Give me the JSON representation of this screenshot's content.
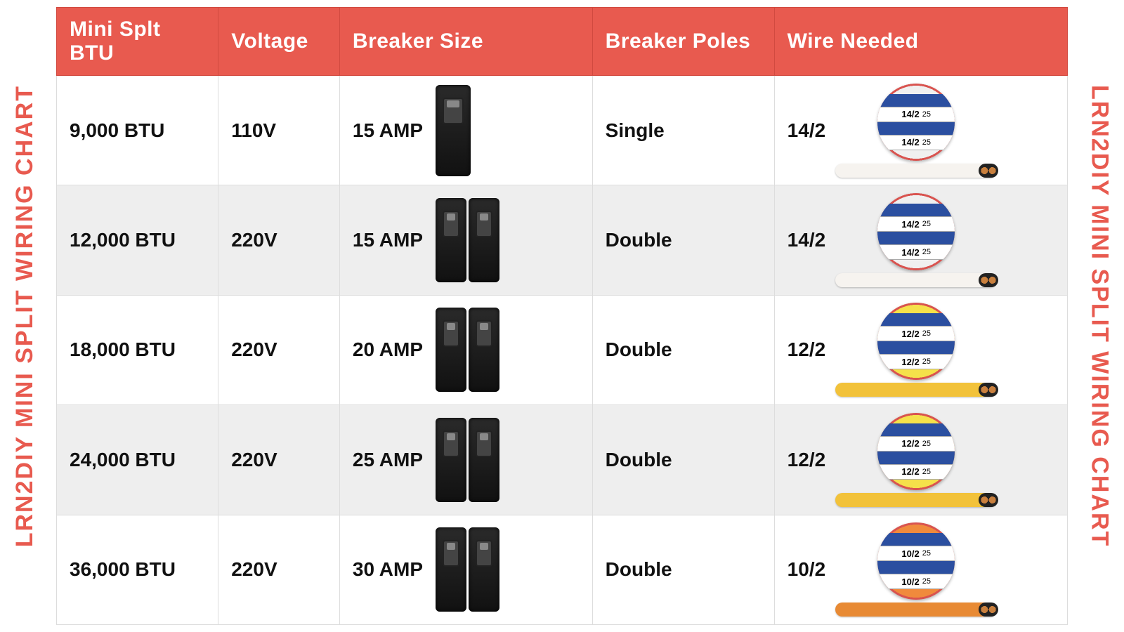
{
  "side_label": "LRN2DIY MINI SPLIT WIRING CHART",
  "colors": {
    "header_bg": "#e85a4f",
    "row_alt": "#eeeeee",
    "border": "#dddddd",
    "side_text": "#e85a4f"
  },
  "columns": [
    {
      "key": "btu",
      "label": "Mini Splt BTU"
    },
    {
      "key": "voltage",
      "label": "Voltage"
    },
    {
      "key": "breaker",
      "label": "Breaker Size"
    },
    {
      "key": "poles",
      "label": "Breaker Poles"
    },
    {
      "key": "wire",
      "label": "Wire Needed"
    }
  ],
  "rows": [
    {
      "btu": "9,000 BTU",
      "voltage": "110V",
      "breaker": "15 AMP",
      "poles": "Single",
      "pole_count": 1,
      "wire": "14/2",
      "wire_label": "14/2",
      "wire_sublabel": "25",
      "spool_bg": "#f0f0f0",
      "spool_ring": "#d9534f",
      "cable_color": "#f6f3ef"
    },
    {
      "btu": "12,000 BTU",
      "voltage": "220V",
      "breaker": "15 AMP",
      "poles": "Double",
      "pole_count": 2,
      "wire": "14/2",
      "wire_label": "14/2",
      "wire_sublabel": "25",
      "spool_bg": "#f0f0f0",
      "spool_ring": "#d9534f",
      "cable_color": "#f6f3ef"
    },
    {
      "btu": "18,000 BTU",
      "voltage": "220V",
      "breaker": "20 AMP",
      "poles": "Double",
      "pole_count": 2,
      "wire": "12/2",
      "wire_label": "12/2",
      "wire_sublabel": "25",
      "spool_bg": "#f5e14a",
      "spool_ring": "#d9534f",
      "cable_color": "#f2c23a"
    },
    {
      "btu": "24,000 BTU",
      "voltage": "220V",
      "breaker": "25 AMP",
      "poles": "Double",
      "pole_count": 2,
      "wire": "12/2",
      "wire_label": "12/2",
      "wire_sublabel": "25",
      "spool_bg": "#f5e14a",
      "spool_ring": "#d9534f",
      "cable_color": "#f2c23a"
    },
    {
      "btu": "36,000 BTU",
      "voltage": "220V",
      "breaker": "30 AMP",
      "poles": "Double",
      "pole_count": 2,
      "wire": "10/2",
      "wire_label": "10/2",
      "wire_sublabel": "25",
      "spool_bg": "#f08a3c",
      "spool_ring": "#d9534f",
      "cable_color": "#e88a34"
    }
  ]
}
